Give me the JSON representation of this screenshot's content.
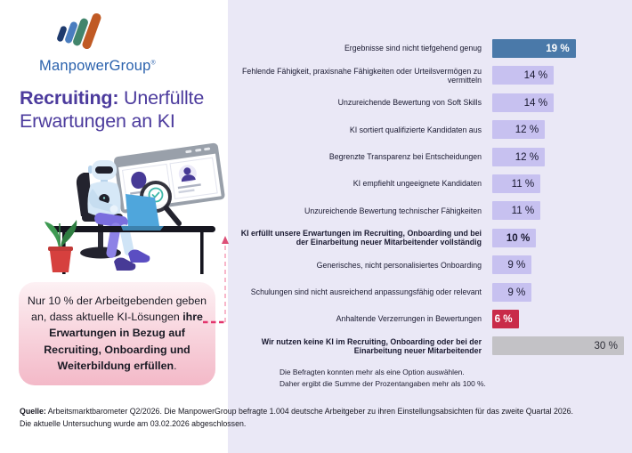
{
  "logo": {
    "wordmark": "ManpowerGroup",
    "reg_mark": "®",
    "wordmark_color": "#2b62ad",
    "stroke_colors": [
      "#1e3a6d",
      "#4a7dbf",
      "#42856c",
      "#c05a24"
    ]
  },
  "title": {
    "highlight": "Recruiting:",
    "rest_line1": " Unerfüllte",
    "rest_line2": "Erwartungen an KI",
    "color": "#4c3b9d"
  },
  "illustration": {
    "name": "robot-reviewing-candidate-profiles-illustration"
  },
  "callout": {
    "text_before": "Nur 10 % der Arbeitgebenden geben an, dass aktuelle KI-Lösungen ",
    "text_bold": "ihre Erwartungen in Bezug auf Recruiting, Onboarding und Weiterbildung erfüllen",
    "text_after": "."
  },
  "chart_data": {
    "type": "bar",
    "orientation": "horizontal",
    "value_suffix": " %",
    "axis_max": 32,
    "bar_colors": {
      "blue": "#4a79a9",
      "purple": "#c7c1f0",
      "red": "#c92b49",
      "gray": "#c3c2c6"
    },
    "items": [
      {
        "label": "Ergebnisse sind nicht tiefgehend genug",
        "value": 19,
        "style": "blue",
        "bold_label": false,
        "bold_value": true
      },
      {
        "label": "Fehlende Fähigkeit, praxisnahe Fähigkeiten oder Urteilsvermögen zu vermitteln",
        "value": 14,
        "style": "purple",
        "bold_label": false,
        "bold_value": false
      },
      {
        "label": "Unzureichende Bewertung von Soft Skills",
        "value": 14,
        "style": "purple",
        "bold_label": false,
        "bold_value": false
      },
      {
        "label": "KI sortiert qualifizierte Kandidaten aus",
        "value": 12,
        "style": "purple",
        "bold_label": false,
        "bold_value": false
      },
      {
        "label": "Begrenzte Transparenz bei Entscheidungen",
        "value": 12,
        "style": "purple",
        "bold_label": false,
        "bold_value": false
      },
      {
        "label": "KI empfiehlt ungeeignete Kandidaten",
        "value": 11,
        "style": "purple",
        "bold_label": false,
        "bold_value": false
      },
      {
        "label": "Unzureichende Bewertung technischer Fähigkeiten",
        "value": 11,
        "style": "purple",
        "bold_label": false,
        "bold_value": false
      },
      {
        "label": "KI erfüllt unsere Erwartungen im Recruiting, Onboarding und bei der Einarbeitung neuer Mitarbeitender vollständig",
        "value": 10,
        "style": "purple",
        "bold_label": true,
        "bold_value": true
      },
      {
        "label": "Generisches, nicht personalisiertes Onboarding",
        "value": 9,
        "style": "purple",
        "bold_label": false,
        "bold_value": false
      },
      {
        "label": "Schulungen sind nicht ausreichend anpassungsfähig oder relevant",
        "value": 9,
        "style": "purple",
        "bold_label": false,
        "bold_value": false
      },
      {
        "label": "Anhaltende Verzerrungen in Bewertungen",
        "value": 6,
        "style": "red",
        "bold_label": false,
        "bold_value": true
      },
      {
        "label": "Wir nutzen keine KI im Recruiting, Onboarding oder bei der Einarbeitung neuer Mitarbeitender",
        "value": 30,
        "style": "gray",
        "bold_label": true,
        "bold_value": false
      }
    ],
    "footnote_line1": "Die Befragten konnten mehr als eine Option auswählen.",
    "footnote_line2": "Daher ergibt die Summe der Prozentangaben mehr als 100 %."
  },
  "source": {
    "label": "Quelle:",
    "line1_rest": " Arbeitsmarktbarometer Q2/2026. Die ManpowerGroup befragte 1.004 deutsche Arbeitgeber zu ihren Einstellungsabsichten für das zweite Quartal 2026.",
    "line2": "Die aktuelle Untersuchung wurde am 03.02.2026 abgeschlossen."
  }
}
